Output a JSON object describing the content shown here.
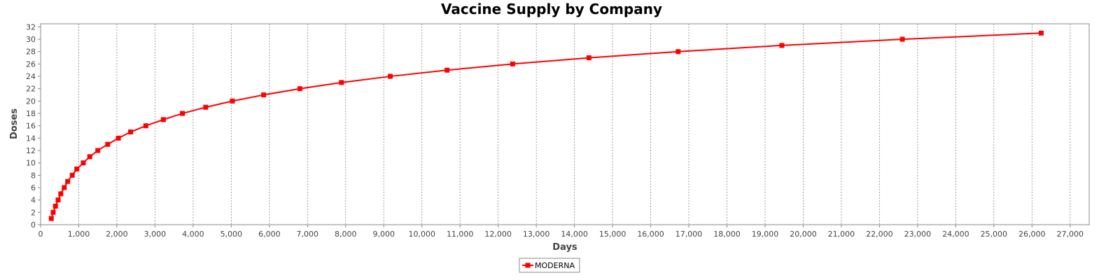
{
  "chart_data": {
    "type": "line",
    "title": "Vaccine Supply by Company",
    "xlabel": "Days",
    "ylabel": "Doses",
    "xlim": [
      0,
      27500
    ],
    "ylim": [
      0,
      32.5
    ],
    "x_ticks": [
      0,
      1000,
      2000,
      3000,
      4000,
      5000,
      6000,
      7000,
      8000,
      9000,
      10000,
      11000,
      12000,
      13000,
      14000,
      15000,
      16000,
      17000,
      18000,
      19000,
      20000,
      21000,
      22000,
      23000,
      24000,
      25000,
      26000,
      27000
    ],
    "x_tick_labels": [
      "0",
      "1,000",
      "2,000",
      "3,000",
      "4,000",
      "5,000",
      "6,000",
      "7,000",
      "8,000",
      "9,000",
      "10,000",
      "11,000",
      "12,000",
      "13,000",
      "14,000",
      "15,000",
      "16,000",
      "17,000",
      "18,000",
      "19,000",
      "20,000",
      "21,000",
      "22,000",
      "23,000",
      "24,000",
      "25,000",
      "26,000",
      "27,000"
    ],
    "y_ticks": [
      0,
      2,
      4,
      6,
      8,
      10,
      12,
      14,
      16,
      18,
      20,
      22,
      24,
      26,
      28,
      30,
      32
    ],
    "y_tick_labels": [
      "0",
      "2",
      "4",
      "6",
      "8",
      "10",
      "12",
      "14",
      "16",
      "18",
      "20",
      "22",
      "24",
      "26",
      "28",
      "30",
      "32"
    ],
    "grid": "vertical dashed",
    "legend_position": "bottom",
    "series": [
      {
        "name": "MODERNA",
        "color": "#ff0000",
        "marker": "square",
        "points": [
          [
            280,
            1
          ],
          [
            330,
            2
          ],
          [
            390,
            3
          ],
          [
            460,
            4
          ],
          [
            530,
            5
          ],
          [
            620,
            6
          ],
          [
            710,
            7
          ],
          [
            830,
            8
          ],
          [
            950,
            9
          ],
          [
            1120,
            10
          ],
          [
            1290,
            11
          ],
          [
            1500,
            12
          ],
          [
            1760,
            13
          ],
          [
            2040,
            14
          ],
          [
            2360,
            15
          ],
          [
            2760,
            16
          ],
          [
            3220,
            17
          ],
          [
            3720,
            18
          ],
          [
            4330,
            19
          ],
          [
            5030,
            20
          ],
          [
            5850,
            21
          ],
          [
            6800,
            22
          ],
          [
            7890,
            23
          ],
          [
            9170,
            24
          ],
          [
            10660,
            25
          ],
          [
            12380,
            26
          ],
          [
            14380,
            27
          ],
          [
            16720,
            28
          ],
          [
            19440,
            29
          ],
          [
            22600,
            30
          ],
          [
            26240,
            31
          ]
        ]
      }
    ]
  }
}
